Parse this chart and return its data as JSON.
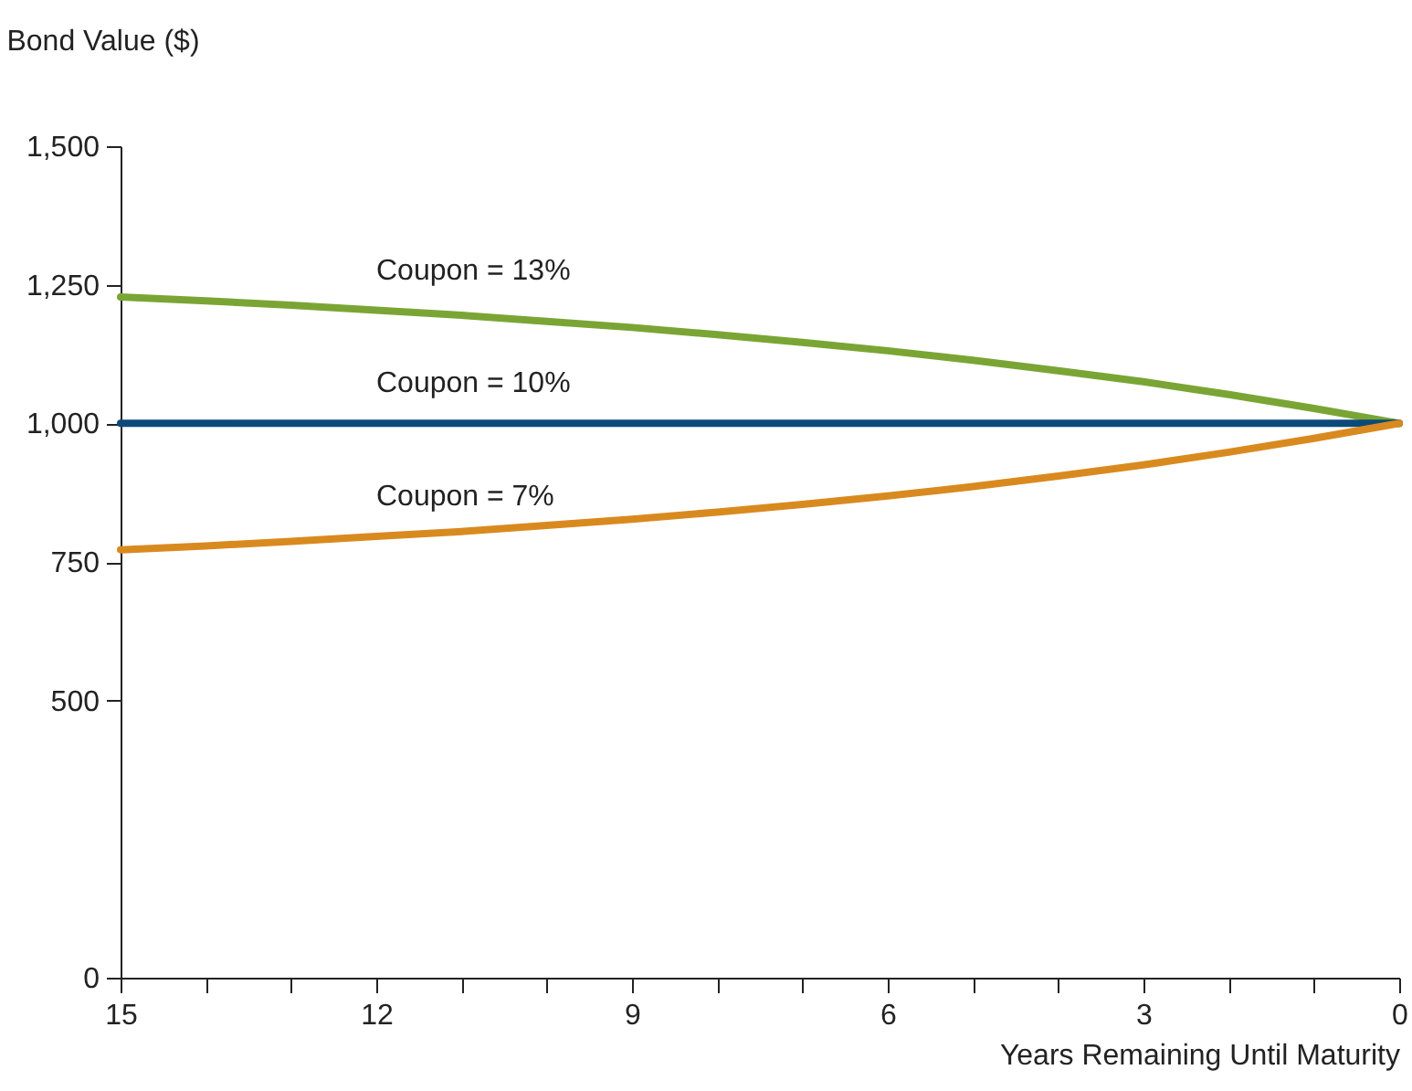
{
  "chart_data": {
    "type": "line",
    "xlabel": "Years Remaining Until Maturity",
    "ylabel": "Bond Value ($)",
    "x": [
      15,
      14,
      13,
      12,
      11,
      10,
      9,
      8,
      7,
      6,
      5,
      4,
      3,
      2,
      1,
      0
    ],
    "series": [
      {
        "name": "Coupon = 13%",
        "color": "#7aa535",
        "values": [
          1228,
          1221,
          1213,
          1204,
          1195,
          1184,
          1173,
          1160,
          1146,
          1131,
          1114,
          1095,
          1075,
          1052,
          1027,
          1000
        ]
      },
      {
        "name": "Coupon = 10%",
        "color": "#0b4a7a",
        "values": [
          1000,
          1000,
          1000,
          1000,
          1000,
          1000,
          1000,
          1000,
          1000,
          1000,
          1000,
          1000,
          1000,
          1000,
          1000,
          1000
        ]
      },
      {
        "name": "Coupon = 7%",
        "color": "#d98a1f",
        "values": [
          772,
          779,
          787,
          796,
          805,
          816,
          827,
          840,
          854,
          869,
          886,
          905,
          925,
          948,
          973,
          1000
        ]
      }
    ],
    "xlim": [
      15,
      0
    ],
    "xticks": [
      15,
      {
        "value": 14,
        "label": null
      },
      {
        "value": 13,
        "label": null
      },
      12,
      {
        "value": 11,
        "label": null
      },
      {
        "value": 10,
        "label": null
      },
      9,
      {
        "value": 8,
        "label": null
      },
      {
        "value": 7,
        "label": null
      },
      6,
      {
        "value": 5,
        "label": null
      },
      {
        "value": 4,
        "label": null
      },
      3,
      {
        "value": 2,
        "label": null
      },
      {
        "value": 1,
        "label": null
      },
      0
    ],
    "ylim": [
      0,
      1500
    ],
    "yticks": [
      0,
      500,
      750,
      {
        "value": 1000,
        "label": "1,000"
      },
      {
        "value": 1250,
        "label": "1,250"
      },
      {
        "value": 1500,
        "label": "1,500"
      }
    ],
    "grid": false,
    "legend": false,
    "marker": "none",
    "line_style": "solid"
  }
}
